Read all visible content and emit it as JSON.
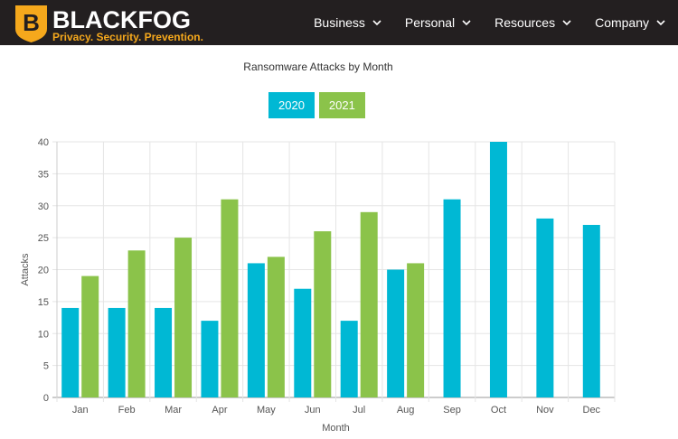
{
  "header": {
    "brand": {
      "name_black": "BLACK",
      "name_fog": "FOG",
      "tagline": "Privacy. Security. Prevention.",
      "logo_letter": "B"
    },
    "nav": [
      {
        "label": "Business",
        "icon": "chevron-down-icon"
      },
      {
        "label": "Personal",
        "icon": "chevron-down-icon"
      },
      {
        "label": "Resources",
        "icon": "chevron-down-icon"
      },
      {
        "label": "Company",
        "icon": "chevron-down-icon"
      }
    ]
  },
  "colors": {
    "header_bg": "#231f20",
    "brand_yellow": "#f5a81c",
    "series_2020": "#00b8d4",
    "series_2021": "#8bc34a"
  },
  "chart_data": {
    "type": "bar",
    "title": "Ransomware Attacks by Month",
    "xlabel": "Month",
    "ylabel": "Attacks",
    "ylim": [
      0,
      40
    ],
    "yticks": [
      0,
      5,
      10,
      15,
      20,
      25,
      30,
      35,
      40
    ],
    "grid": true,
    "legend_placement": "top-center",
    "categories": [
      "Jan",
      "Feb",
      "Mar",
      "Apr",
      "May",
      "Jun",
      "Jul",
      "Aug",
      "Sep",
      "Oct",
      "Nov",
      "Dec"
    ],
    "series": [
      {
        "name": "2020",
        "color": "#00b8d4",
        "values": [
          14,
          14,
          14,
          12,
          21,
          17,
          12,
          20,
          31,
          40,
          28,
          27
        ]
      },
      {
        "name": "2021",
        "color": "#8bc34a",
        "values": [
          19,
          23,
          25,
          31,
          22,
          26,
          29,
          21,
          null,
          null,
          null,
          null
        ]
      }
    ]
  }
}
